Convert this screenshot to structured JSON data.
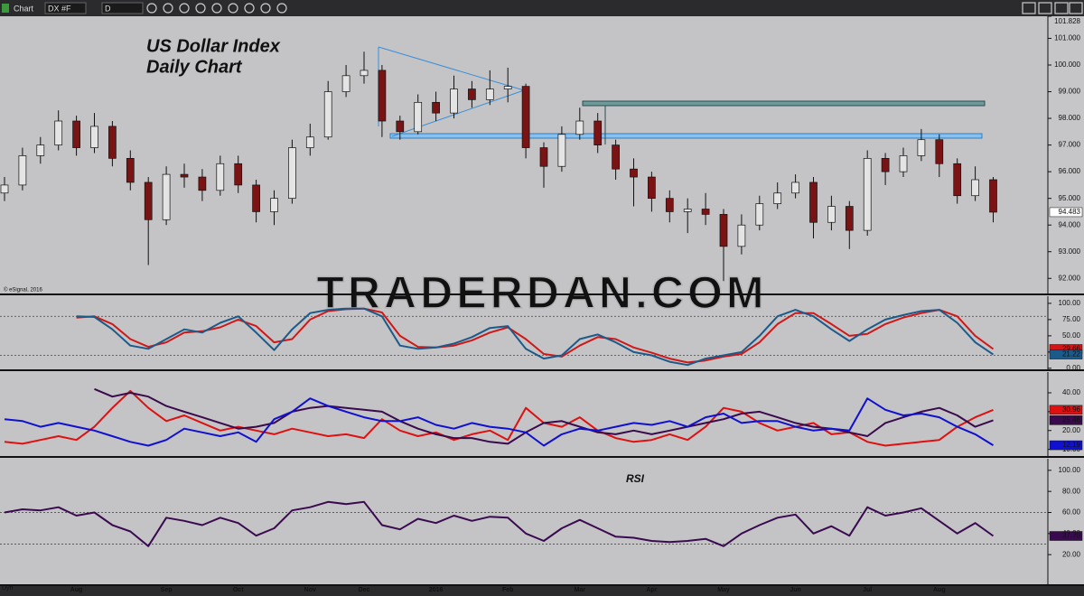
{
  "toolbar": {
    "title": "Chart",
    "symbol": "DX #F",
    "interval": "D",
    "footer": "Dyn"
  },
  "watermark": "TRADERDAN.COM",
  "chart_data": [
    {
      "type": "candlestick",
      "title": "US Dollar Index",
      "subtitle": "Daily Chart",
      "source": "© eSignal, 2016",
      "categories": [
        null,
        null,
        null,
        null,
        "Aug",
        null,
        null,
        null,
        null,
        "Sep",
        null,
        null,
        null,
        "Oct",
        null,
        null,
        null,
        "Nov",
        null,
        null,
        "Dec",
        null,
        null,
        null,
        "2016",
        null,
        null,
        null,
        "Feb",
        null,
        null,
        null,
        "Mar",
        null,
        null,
        null,
        "Apr",
        null,
        null,
        null,
        "May",
        null,
        null,
        null,
        "Jun",
        null,
        null,
        null,
        "Jul",
        null,
        null,
        null,
        "Aug",
        null,
        null,
        null
      ],
      "open": [
        95.2,
        95.5,
        96.6,
        97.0,
        97.9,
        96.9,
        97.7,
        96.5,
        95.6,
        94.2,
        95.9,
        95.8,
        95.3,
        96.3,
        95.5,
        94.5,
        95.0,
        96.9,
        97.3,
        99.0,
        99.6,
        99.8,
        97.9,
        97.5,
        98.6,
        98.2,
        99.1,
        98.7,
        99.1,
        99.2,
        96.9,
        96.2,
        97.4,
        97.9,
        97.0,
        96.1,
        95.8,
        95.0,
        94.5,
        94.6,
        94.4,
        93.2,
        94.0,
        94.8,
        95.2,
        95.6,
        94.1,
        94.7,
        93.8,
        96.5,
        96.0,
        96.6,
        97.2,
        96.3,
        95.1,
        95.7
      ],
      "high": [
        95.8,
        96.9,
        97.3,
        98.3,
        98.1,
        98.2,
        97.9,
        96.8,
        95.8,
        96.2,
        96.3,
        96.1,
        96.6,
        96.6,
        95.7,
        95.3,
        97.2,
        97.8,
        99.4,
        100.0,
        100.5,
        100.0,
        98.1,
        98.9,
        99.0,
        99.6,
        99.4,
        99.8,
        99.9,
        99.3,
        97.1,
        97.7,
        98.4,
        98.2,
        97.2,
        96.5,
        96.0,
        95.3,
        95.0,
        95.2,
        94.6,
        94.4,
        95.1,
        95.6,
        95.9,
        95.8,
        95.1,
        94.9,
        96.8,
        96.7,
        96.9,
        97.6,
        97.4,
        96.5,
        96.2,
        95.8
      ],
      "low": [
        94.9,
        95.3,
        96.3,
        96.8,
        96.6,
        96.7,
        96.2,
        95.3,
        92.5,
        94.0,
        95.4,
        94.9,
        95.1,
        95.2,
        94.1,
        94.0,
        94.8,
        96.6,
        97.2,
        98.8,
        99.3,
        97.3,
        97.2,
        97.4,
        97.9,
        98.0,
        98.4,
        98.5,
        98.6,
        96.5,
        95.4,
        96.0,
        97.2,
        96.7,
        95.7,
        94.7,
        94.5,
        94.1,
        93.7,
        94.0,
        91.9,
        92.9,
        93.8,
        94.6,
        95.0,
        93.5,
        93.8,
        93.1,
        93.6,
        95.5,
        95.8,
        96.4,
        95.8,
        94.8,
        94.9,
        94.1
      ],
      "close": [
        95.5,
        96.6,
        97.0,
        97.9,
        96.9,
        97.7,
        96.5,
        95.6,
        94.2,
        95.9,
        95.8,
        95.3,
        96.3,
        95.5,
        94.5,
        95.0,
        96.9,
        97.3,
        99.0,
        99.6,
        99.8,
        97.9,
        97.5,
        98.6,
        98.2,
        99.1,
        98.7,
        99.1,
        99.2,
        96.9,
        96.2,
        97.4,
        97.9,
        97.0,
        96.1,
        95.8,
        95.0,
        94.5,
        94.6,
        94.4,
        93.2,
        94.0,
        94.8,
        95.2,
        95.6,
        94.1,
        94.7,
        93.8,
        96.5,
        96.0,
        96.6,
        97.2,
        96.3,
        95.1,
        95.7,
        94.483
      ],
      "up_color": "#e4e4e4",
      "down_color": "#7a1414",
      "ylim": [
        91.4,
        101.828
      ],
      "yticks": [
        101.828,
        {
          "value": 101,
          "label": "101.000"
        },
        {
          "value": 100,
          "label": "100.000"
        },
        {
          "value": 99,
          "label": "99.000"
        },
        {
          "value": 98,
          "label": "98.000"
        },
        {
          "value": 97,
          "label": "97.000"
        },
        {
          "value": 96,
          "label": "96.000"
        },
        {
          "value": 95,
          "label": "95.000"
        },
        {
          "value": 94,
          "label": "94.000"
        },
        {
          "value": 93,
          "label": "93.000"
        },
        {
          "value": 92,
          "label": "92.000"
        }
      ]
    },
    {
      "type": "line",
      "ylim": [
        -3,
        111
      ],
      "yticks": [
        {
          "value": 100,
          "label": "100.00"
        },
        {
          "value": 75,
          "label": "75.00"
        },
        {
          "value": 50,
          "label": "50.00"
        },
        {
          "value": 25,
          "label": "25.00"
        },
        {
          "value": 0,
          "label": "0.00"
        }
      ],
      "levels": [
        {
          "value": 80,
          "color": "#555555"
        },
        {
          "value": 20,
          "color": "#555555"
        }
      ],
      "series": [
        {
          "color": "#d01818",
          "values": [
            null,
            null,
            null,
            null,
            78,
            80,
            68,
            45,
            33,
            40,
            55,
            57,
            63,
            75,
            65,
            40,
            45,
            75,
            88,
            91,
            92,
            86,
            50,
            33,
            32,
            35,
            43,
            55,
            63,
            45,
            22,
            18,
            35,
            48,
            45,
            32,
            24,
            15,
            9,
            12,
            18,
            22,
            40,
            68,
            85,
            85,
            68,
            50,
            53,
            68,
            78,
            85,
            90,
            80,
            50,
            29.66
          ]
        },
        {
          "color": "#1c5a8a",
          "values": [
            null,
            null,
            null,
            null,
            80,
            79,
            60,
            35,
            30,
            45,
            60,
            55,
            70,
            80,
            55,
            28,
            60,
            85,
            90,
            92,
            92,
            80,
            35,
            30,
            32,
            38,
            48,
            62,
            65,
            30,
            15,
            20,
            45,
            52,
            40,
            25,
            20,
            10,
            5,
            15,
            20,
            25,
            50,
            80,
            90,
            80,
            60,
            42,
            60,
            75,
            82,
            88,
            90,
            70,
            40,
            21.22
          ]
        }
      ]
    },
    {
      "type": "line",
      "ylim": [
        6,
        51
      ],
      "yticks": [
        {
          "value": 40,
          "label": "40.00"
        },
        {
          "value": 30,
          "label": "30.00"
        },
        {
          "value": 20,
          "label": "20.00"
        },
        {
          "value": 10,
          "label": "10.00"
        }
      ],
      "series": [
        {
          "color": "#e01010",
          "values": [
            14,
            13,
            15,
            17,
            15,
            22,
            32,
            41,
            32,
            25,
            28,
            24,
            20,
            22,
            20,
            18,
            21,
            19,
            17,
            18,
            16,
            26,
            20,
            17,
            19,
            15,
            18,
            20,
            15,
            32,
            24,
            22,
            27,
            20,
            16,
            14,
            15,
            18,
            15,
            22,
            32,
            30,
            24,
            20,
            22,
            24,
            18,
            19,
            14,
            12,
            13,
            14,
            15,
            22,
            27,
            30.96
          ]
        },
        {
          "color": "#3a0a4c",
          "values": [
            null,
            null,
            null,
            null,
            null,
            42,
            38,
            40,
            38,
            33,
            30,
            27,
            24,
            21,
            22,
            24,
            30,
            32,
            33,
            32,
            31,
            30,
            25,
            21,
            18,
            16,
            16,
            14,
            13,
            19,
            24,
            25,
            22,
            19,
            18,
            20,
            18,
            20,
            22,
            24,
            26,
            29,
            30,
            27,
            24,
            22,
            21,
            19,
            17,
            24,
            27,
            30,
            32,
            28,
            22,
            25.46
          ]
        },
        {
          "color": "#1010d0",
          "values": [
            26,
            25,
            22,
            24,
            22,
            20,
            17,
            14,
            12,
            15,
            21,
            19,
            17,
            19,
            14,
            26,
            30,
            37,
            33,
            30,
            27,
            25,
            25,
            27,
            23,
            21,
            24,
            22,
            21,
            19,
            12,
            18,
            21,
            20,
            22,
            24,
            23,
            25,
            22,
            27,
            29,
            24,
            25,
            25,
            22,
            20,
            21,
            20,
            37,
            31,
            28,
            29,
            27,
            22,
            18,
            12.19
          ]
        }
      ]
    },
    {
      "type": "line",
      "title": "RSI",
      "ylim": [
        -9,
        111
      ],
      "yticks": [
        {
          "value": 100,
          "label": "100.00"
        },
        {
          "value": 80,
          "label": "80.00"
        },
        {
          "value": 60,
          "label": "60.00"
        },
        {
          "value": 40,
          "label": "40.00"
        },
        {
          "value": 20,
          "label": "20.00"
        }
      ],
      "levels": [
        {
          "value": 60,
          "color": "#c00000"
        },
        {
          "value": 30,
          "color": "#333333"
        }
      ],
      "series": [
        {
          "color": "#3a0a50",
          "values": [
            60,
            63,
            62,
            65,
            57,
            60,
            48,
            42,
            28,
            55,
            52,
            48,
            55,
            50,
            38,
            45,
            62,
            65,
            70,
            68,
            70,
            48,
            44,
            54,
            50,
            57,
            52,
            56,
            55,
            40,
            33,
            45,
            53,
            45,
            37,
            36,
            33,
            32,
            33,
            35,
            28,
            40,
            48,
            55,
            58,
            40,
            47,
            38,
            65,
            57,
            60,
            64,
            52,
            40,
            50,
            37.7
          ],
          "value_labels": [
            null,
            null,
            null,
            null,
            null,
            null,
            null,
            null,
            null,
            null,
            null,
            null,
            null,
            null,
            null,
            null,
            null,
            null,
            null,
            null,
            null,
            null,
            null,
            null,
            null,
            null,
            null,
            null,
            null,
            null,
            null,
            null,
            null,
            null,
            null,
            null,
            null,
            null,
            null,
            null,
            null,
            null,
            null,
            null,
            null,
            null,
            null,
            null,
            null,
            null,
            null,
            null,
            null,
            null,
            null,
            "37.70"
          ]
        }
      ]
    }
  ]
}
